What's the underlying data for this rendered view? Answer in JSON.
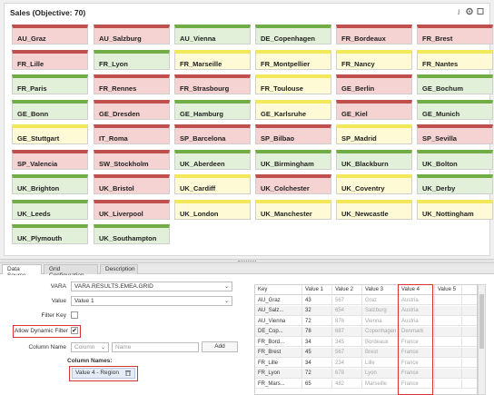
{
  "panel": {
    "title": "Sales (Objective: 70)",
    "icons": [
      "info-icon",
      "settings-icon",
      "expand-icon"
    ]
  },
  "tiles": [
    {
      "label": "AU_Graz",
      "status": "red"
    },
    {
      "label": "AU_Salzburg",
      "status": "red"
    },
    {
      "label": "AU_Vienna",
      "status": "green"
    },
    {
      "label": "DE_Copenhagen",
      "status": "green"
    },
    {
      "label": "FR_Bordeaux",
      "status": "red"
    },
    {
      "label": "FR_Brest",
      "status": "red"
    },
    {
      "label": "FR_Lille",
      "status": "red"
    },
    {
      "label": "FR_Lyon",
      "status": "green"
    },
    {
      "label": "FR_Marseille",
      "status": "yellow"
    },
    {
      "label": "FR_Montpellier",
      "status": "yellow"
    },
    {
      "label": "FR_Nancy",
      "status": "yellow"
    },
    {
      "label": "FR_Nantes",
      "status": "yellow"
    },
    {
      "label": "FR_Paris",
      "status": "green"
    },
    {
      "label": "FR_Rennes",
      "status": "red"
    },
    {
      "label": "FR_Strasbourg",
      "status": "red"
    },
    {
      "label": "FR_Toulouse",
      "status": "yellow"
    },
    {
      "label": "GE_Berlin",
      "status": "red"
    },
    {
      "label": "GE_Bochum",
      "status": "green"
    },
    {
      "label": "GE_Bonn",
      "status": "green"
    },
    {
      "label": "GE_Dresden",
      "status": "red"
    },
    {
      "label": "GE_Hamburg",
      "status": "green"
    },
    {
      "label": "GE_Karlsruhe",
      "status": "yellow"
    },
    {
      "label": "GE_Kiel",
      "status": "red"
    },
    {
      "label": "GE_Munich",
      "status": "green"
    },
    {
      "label": "GE_Stuttgart",
      "status": "yellow"
    },
    {
      "label": "IT_Roma",
      "status": "red"
    },
    {
      "label": "SP_Barcelona",
      "status": "red"
    },
    {
      "label": "SP_Bilbao",
      "status": "red"
    },
    {
      "label": "SP_Madrid",
      "status": "yellow"
    },
    {
      "label": "SP_Sevilla",
      "status": "red"
    },
    {
      "label": "SP_Valencia",
      "status": "red"
    },
    {
      "label": "SW_Stockholm",
      "status": "red"
    },
    {
      "label": "UK_Aberdeen",
      "status": "green"
    },
    {
      "label": "UK_Birmingham",
      "status": "green"
    },
    {
      "label": "UK_Blackburn",
      "status": "green"
    },
    {
      "label": "UK_Bolton",
      "status": "green"
    },
    {
      "label": "UK_Brighton",
      "status": "green"
    },
    {
      "label": "UK_Bristol",
      "status": "red"
    },
    {
      "label": "UK_Cardiff",
      "status": "yellow"
    },
    {
      "label": "UK_Colchester",
      "status": "red"
    },
    {
      "label": "UK_Coventry",
      "status": "yellow"
    },
    {
      "label": "UK_Derby",
      "status": "green"
    },
    {
      "label": "UK_Leeds",
      "status": "green"
    },
    {
      "label": "UK_Liverpool",
      "status": "red"
    },
    {
      "label": "UK_London",
      "status": "yellow"
    },
    {
      "label": "UK_Manchester",
      "status": "yellow"
    },
    {
      "label": "UK_Newcastle",
      "status": "yellow"
    },
    {
      "label": "UK_Nottingham",
      "status": "yellow"
    },
    {
      "label": "UK_Plymouth",
      "status": "green"
    },
    {
      "label": "UK_Southampton",
      "status": "green"
    }
  ],
  "tabs": [
    {
      "label": "Data Source",
      "active": true
    },
    {
      "label": "Grid Configuration",
      "active": false
    },
    {
      "label": "Description",
      "active": false
    }
  ],
  "form": {
    "vara_label": "VARA",
    "vara_value": "VARA.RESULTS.EMEA.GRID",
    "value_label": "Value",
    "value_value": "Value 1",
    "filter_key_label": "Filter Key",
    "allow_dynamic_label": "Allow Dynamic Filter",
    "allow_dynamic_checked": "✔",
    "column_name_label": "Column Name",
    "column_select": "Column",
    "name_placeholder": "Name",
    "add_label": "Add",
    "column_names_label": "Column Names:",
    "column_tag": "Value 4 - Region",
    "delete_icon": "trash-icon"
  },
  "grid": {
    "headers": [
      "Key",
      "Value 1",
      "Value 2",
      "Value 3",
      "Value 4",
      "Value 5"
    ],
    "rows": [
      [
        "AU_Graz",
        "43",
        "567",
        "Graz",
        "Austria",
        ""
      ],
      [
        "AU_Salz...",
        "32",
        "654",
        "Salzburg",
        "Austria",
        ""
      ],
      [
        "AU_Vienna",
        "72",
        "876",
        "Vienna",
        "Austria",
        ""
      ],
      [
        "DE_Cop...",
        "78",
        "687",
        "Copenhagen",
        "Denmark",
        ""
      ],
      [
        "FR_Bord...",
        "34",
        "345",
        "Bordeaux",
        "France",
        ""
      ],
      [
        "FR_Brest",
        "45",
        "567",
        "Brest",
        "France",
        ""
      ],
      [
        "FR_Lille",
        "34",
        "234",
        "Lille",
        "France",
        ""
      ],
      [
        "FR_Lyon",
        "72",
        "678",
        "Lyon",
        "France",
        ""
      ],
      [
        "FR_Mars...",
        "65",
        "482",
        "Marseille",
        "France",
        ""
      ]
    ]
  },
  "colors": {
    "red": "#c0504d",
    "yellow": "#f2e85a",
    "green": "#70ad47",
    "highlight": "#d63333"
  }
}
